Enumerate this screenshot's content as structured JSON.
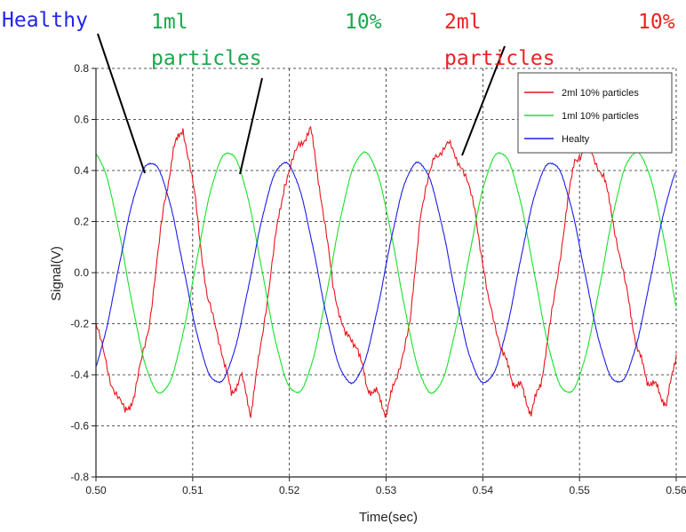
{
  "colors": {
    "red": "#e8141a",
    "green": "#19e02c",
    "blue": "#1c1ee8",
    "ann_green": "#1aa84c",
    "ann_red": "#ee2020",
    "ann_blue": "#2424ee"
  },
  "annotations": {
    "healthy": "Healthy",
    "green_1": "1ml",
    "green_2": "particles",
    "green_3": "10%",
    "red_1": "2ml",
    "red_2": "particles",
    "red_3": "10%"
  },
  "chart_data": {
    "type": "line",
    "title": "",
    "xlabel": "Time(sec)",
    "ylabel": "Signal(V)",
    "xlim": [
      0.5,
      0.56
    ],
    "ylim": [
      -0.8,
      0.8
    ],
    "x_ticks": [
      0.5,
      0.51,
      0.52,
      0.53,
      0.54,
      0.55,
      0.56
    ],
    "x_tick_labels": [
      "0.50",
      "0.51",
      "0.52",
      "0.53",
      "0.54",
      "0.55",
      "0.56"
    ],
    "y_ticks": [
      -0.8,
      -0.6,
      -0.4,
      -0.2,
      0.0,
      0.2,
      0.4,
      0.6,
      0.8
    ],
    "y_tick_labels": [
      "-0.8",
      "-0.6",
      "-0.4",
      "-0.2",
      "0.0",
      "0.2",
      "0.4",
      "0.6",
      "0.8"
    ],
    "grid": true,
    "legend_position": "top-right",
    "series": [
      {
        "name": "2ml 10% particles",
        "color": "#e8141a",
        "x": [
          0.5,
          0.5015,
          0.503,
          0.504,
          0.5055,
          0.507,
          0.508,
          0.509,
          0.5103,
          0.5115,
          0.513,
          0.514,
          0.515,
          0.516,
          0.517,
          0.5185,
          0.5195,
          0.521,
          0.5222,
          0.5232,
          0.5245,
          0.5258,
          0.527,
          0.528,
          0.529,
          0.53,
          0.531,
          0.5325,
          0.5335,
          0.535,
          0.5365,
          0.5378,
          0.5392,
          0.5405,
          0.542,
          0.543,
          0.544,
          0.545,
          0.546,
          0.547,
          0.5485,
          0.5495,
          0.551,
          0.5525,
          0.5535,
          0.555,
          0.556,
          0.557,
          0.558,
          0.559,
          0.56
        ],
        "y": [
          -0.2,
          -0.42,
          -0.55,
          -0.48,
          -0.2,
          0.25,
          0.48,
          0.57,
          0.28,
          -0.1,
          -0.3,
          -0.48,
          -0.4,
          -0.55,
          -0.3,
          0.12,
          0.35,
          0.5,
          0.56,
          0.32,
          -0.05,
          -0.25,
          -0.28,
          -0.45,
          -0.47,
          -0.55,
          -0.42,
          -0.2,
          0.22,
          0.46,
          0.5,
          0.42,
          0.25,
          -0.1,
          -0.3,
          -0.42,
          -0.45,
          -0.55,
          -0.43,
          -0.2,
          0.2,
          0.45,
          0.48,
          0.38,
          0.2,
          -0.1,
          -0.3,
          -0.42,
          -0.45,
          -0.52,
          -0.32
        ]
      },
      {
        "name": "1ml 10% particles",
        "color": "#19e02c",
        "phase_peak_x": 0.5137,
        "amplitude": 0.47,
        "period": 0.01405,
        "x_start": 0.5,
        "x_end": 0.56
      },
      {
        "name": "Healty",
        "color": "#1c1ee8",
        "phase_peak_x": 0.5057,
        "amplitude": 0.43,
        "period": 0.0138,
        "x_start": 0.5,
        "x_end": 0.56
      }
    ]
  }
}
